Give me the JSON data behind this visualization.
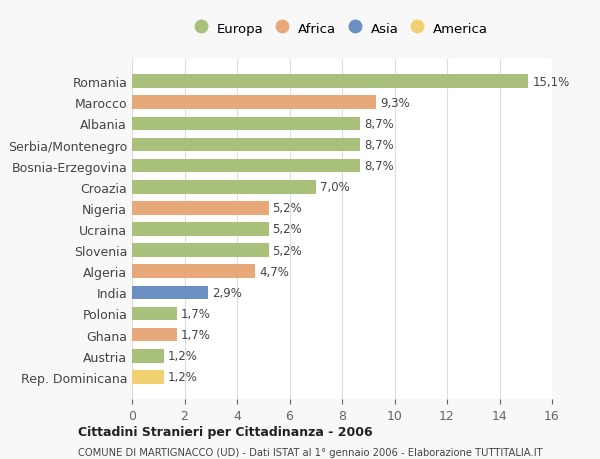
{
  "categories": [
    "Romania",
    "Marocco",
    "Albania",
    "Serbia/Montenegro",
    "Bosnia-Erzegovina",
    "Croazia",
    "Nigeria",
    "Ucraina",
    "Slovenia",
    "Algeria",
    "India",
    "Polonia",
    "Ghana",
    "Austria",
    "Rep. Dominicana"
  ],
  "values": [
    15.1,
    9.3,
    8.7,
    8.7,
    8.7,
    7.0,
    5.2,
    5.2,
    5.2,
    4.7,
    2.9,
    1.7,
    1.7,
    1.2,
    1.2
  ],
  "labels": [
    "15,1%",
    "9,3%",
    "8,7%",
    "8,7%",
    "8,7%",
    "7,0%",
    "5,2%",
    "5,2%",
    "5,2%",
    "4,7%",
    "2,9%",
    "1,7%",
    "1,7%",
    "1,2%",
    "1,2%"
  ],
  "continents": [
    "Europa",
    "Africa",
    "Europa",
    "Europa",
    "Europa",
    "Europa",
    "Africa",
    "Europa",
    "Europa",
    "Africa",
    "Asia",
    "Europa",
    "Africa",
    "Europa",
    "America"
  ],
  "continent_colors": {
    "Europa": "#a8c07a",
    "Africa": "#e8a97a",
    "Asia": "#6a8fc0",
    "America": "#f0d070"
  },
  "legend_order": [
    "Europa",
    "Africa",
    "Asia",
    "America"
  ],
  "title_bold": "Cittadini Stranieri per Cittadinanza - 2006",
  "subtitle": "COMUNE DI MARTIGNACCO (UD) - Dati ISTAT al 1° gennaio 2006 - Elaborazione TUTTITALIA.IT",
  "xlim": [
    0,
    16
  ],
  "xticks": [
    0,
    2,
    4,
    6,
    8,
    10,
    12,
    14,
    16
  ],
  "background_color": "#f8f8f8",
  "bar_background": "#ffffff",
  "grid_color": "#dddddd"
}
